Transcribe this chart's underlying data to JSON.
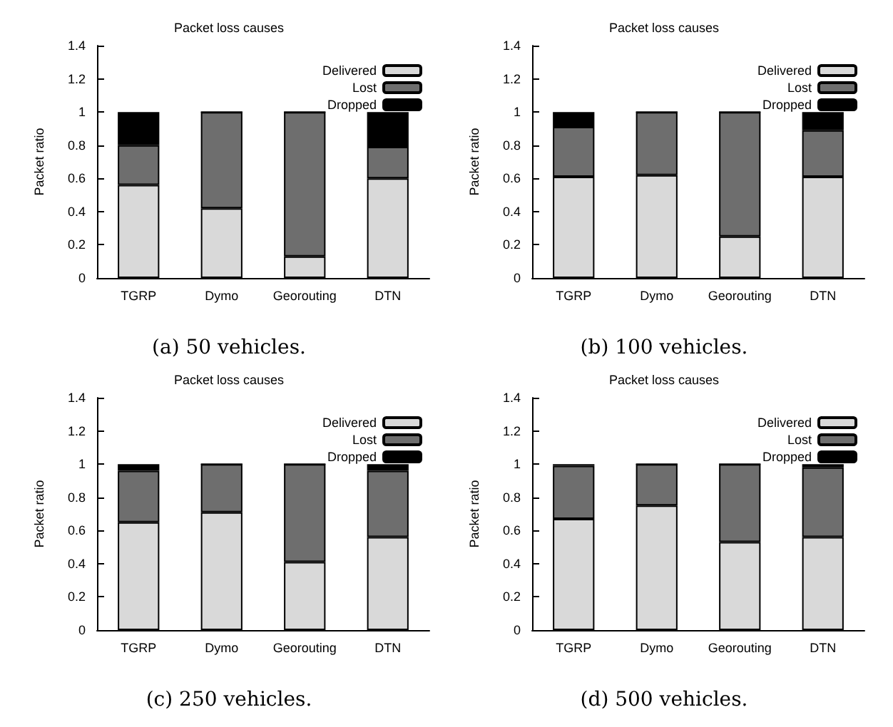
{
  "chart_data": [
    {
      "type": "bar",
      "title": "Packet loss causes",
      "ylabel": "Packet ratio",
      "categories": [
        "TGRP",
        "Dymo",
        "Georouting",
        "DTN"
      ],
      "stacked": true,
      "ylim": [
        0,
        1.4
      ],
      "yticks": [
        0,
        0.2,
        0.4,
        0.6,
        0.8,
        1,
        1.2,
        1.4
      ],
      "legend": "top right",
      "grid": false,
      "annotations": [
        "(a) 50 vehicles."
      ],
      "series": [
        {
          "name": "Delivered",
          "color": "#d9d9d9",
          "values": [
            0.56,
            0.42,
            0.13,
            0.6
          ]
        },
        {
          "name": "Lost",
          "color": "#6e6e6e",
          "values": [
            0.24,
            0.58,
            0.87,
            0.19
          ]
        },
        {
          "name": "Dropped",
          "color": "#000000",
          "values": [
            0.2,
            0,
            0,
            0.21
          ]
        }
      ]
    },
    {
      "type": "bar",
      "title": "Packet loss causes",
      "ylabel": "Packet ratio",
      "categories": [
        "TGRP",
        "Dymo",
        "Georouting",
        "DTN"
      ],
      "stacked": true,
      "ylim": [
        0,
        1.4
      ],
      "yticks": [
        0,
        0.2,
        0.4,
        0.6,
        0.8,
        1,
        1.2,
        1.4
      ],
      "legend": "top right",
      "grid": false,
      "annotations": [
        "(b) 100 vehicles."
      ],
      "series": [
        {
          "name": "Delivered",
          "color": "#d9d9d9",
          "values": [
            0.61,
            0.62,
            0.25,
            0.61
          ]
        },
        {
          "name": "Lost",
          "color": "#6e6e6e",
          "values": [
            0.3,
            0.38,
            0.75,
            0.28
          ]
        },
        {
          "name": "Dropped",
          "color": "#000000",
          "values": [
            0.09,
            0,
            0,
            0.11
          ]
        }
      ]
    },
    {
      "type": "bar",
      "title": "Packet loss causes",
      "ylabel": "Packet ratio",
      "categories": [
        "TGRP",
        "Dymo",
        "Georouting",
        "DTN"
      ],
      "stacked": true,
      "ylim": [
        0,
        1.4
      ],
      "yticks": [
        0,
        0.2,
        0.4,
        0.6,
        0.8,
        1,
        1.2,
        1.4
      ],
      "legend": "top right",
      "grid": false,
      "annotations": [
        "(c) 250 vehicles."
      ],
      "series": [
        {
          "name": "Delivered",
          "color": "#d9d9d9",
          "values": [
            0.65,
            0.71,
            0.41,
            0.56
          ]
        },
        {
          "name": "Lost",
          "color": "#6e6e6e",
          "values": [
            0.31,
            0.29,
            0.59,
            0.4
          ]
        },
        {
          "name": "Dropped",
          "color": "#000000",
          "values": [
            0.04,
            0,
            0,
            0.04
          ]
        }
      ]
    },
    {
      "type": "bar",
      "title": "Packet loss causes",
      "ylabel": "Packet ratio",
      "categories": [
        "TGRP",
        "Dymo",
        "Georouting",
        "DTN"
      ],
      "stacked": true,
      "ylim": [
        0,
        1.4
      ],
      "yticks": [
        0,
        0.2,
        0.4,
        0.6,
        0.8,
        1,
        1.2,
        1.4
      ],
      "legend": "top right",
      "grid": false,
      "annotations": [
        "(d) 500 vehicles."
      ],
      "series": [
        {
          "name": "Delivered",
          "color": "#d9d9d9",
          "values": [
            0.67,
            0.75,
            0.53,
            0.56
          ]
        },
        {
          "name": "Lost",
          "color": "#6e6e6e",
          "values": [
            0.32,
            0.25,
            0.47,
            0.42
          ]
        },
        {
          "name": "Dropped",
          "color": "#000000",
          "values": [
            0.01,
            0,
            0,
            0.02
          ]
        }
      ]
    }
  ]
}
